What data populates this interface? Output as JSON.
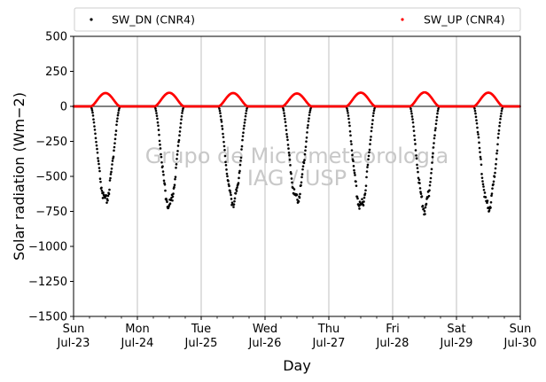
{
  "chart_data": {
    "type": "scatter",
    "ylabel": "Solar radiation (Wm−2)",
    "xlabel": "Day",
    "ylim": [
      -1500,
      500
    ],
    "yticks": [
      500,
      250,
      0,
      -250,
      -500,
      -750,
      -1000,
      -1250,
      -1500
    ],
    "xlim": [
      0,
      7
    ],
    "xticks": [
      {
        "x": 0,
        "weekday": "Sun",
        "date": "Jul-23"
      },
      {
        "x": 1,
        "weekday": "Mon",
        "date": "Jul-24"
      },
      {
        "x": 2,
        "weekday": "Tue",
        "date": "Jul-25"
      },
      {
        "x": 3,
        "weekday": "Wed",
        "date": "Jul-26"
      },
      {
        "x": 4,
        "weekday": "Thu",
        "date": "Jul-27"
      },
      {
        "x": 5,
        "weekday": "Fri",
        "date": "Jul-28"
      },
      {
        "x": 6,
        "weekday": "Sat",
        "date": "Jul-29"
      },
      {
        "x": 7,
        "weekday": "Sun",
        "date": "Jul-30"
      }
    ],
    "grid": "vertical",
    "zero_line": true,
    "legend_position": "top",
    "watermark": [
      "Grupo de Micrometeorologia",
      "IAG / USP"
    ],
    "series": [
      {
        "name": "SW_DN (CNR4)",
        "color": "#000000",
        "daily_peaks": [
          -675,
          -705,
          -685,
          -660,
          -715,
          -730,
          -715
        ]
      },
      {
        "name": "SW_UP (CNR4)",
        "color": "#ff0000",
        "daily_peaks": [
          95,
          97,
          95,
          92,
          98,
          100,
          98
        ]
      }
    ],
    "day_profile": {
      "sunrise_hour": 6.5,
      "sunset_hour": 17.5,
      "samples_per_day": 144
    }
  }
}
